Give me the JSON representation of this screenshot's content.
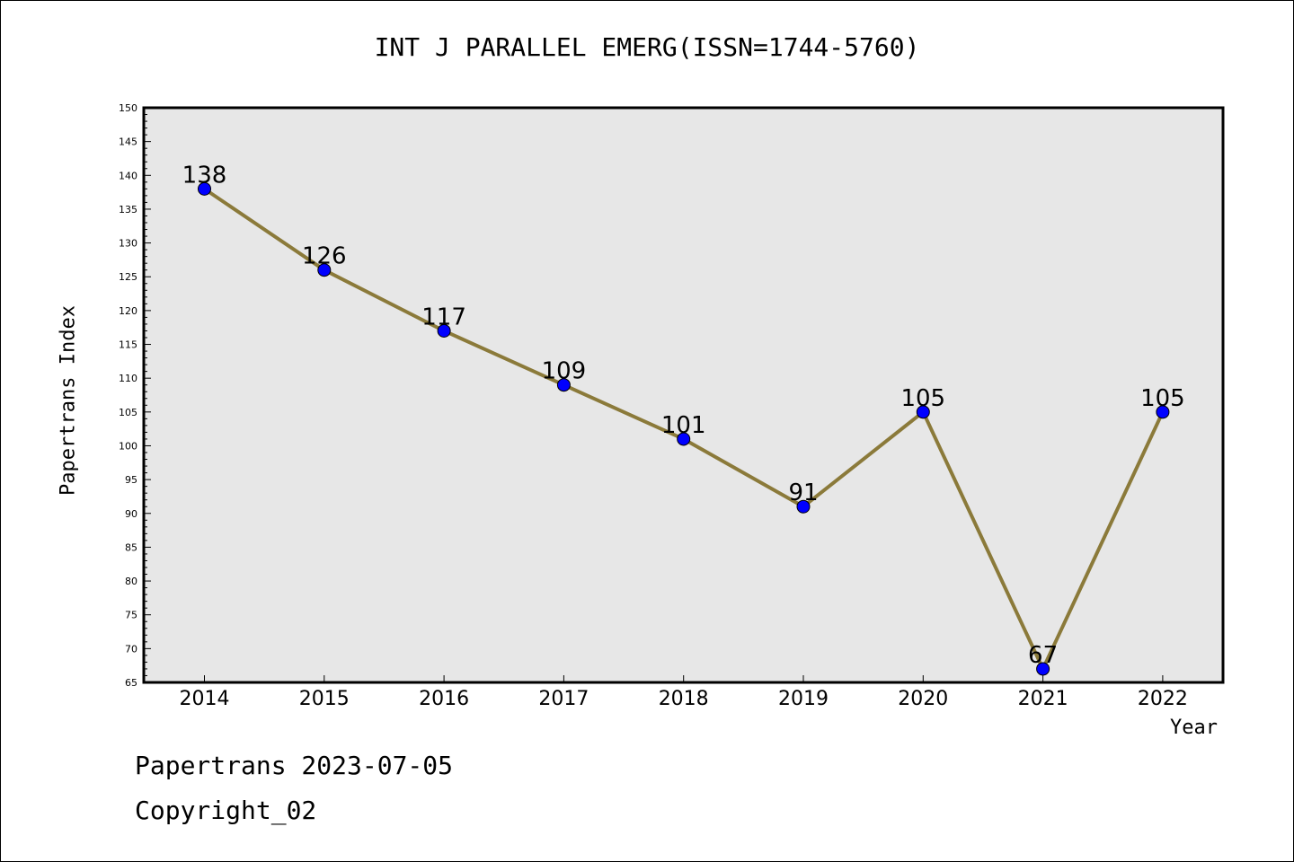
{
  "title": "INT J PARALLEL EMERG(ISSN=1744-5760)",
  "footer": {
    "line1": "Papertrans 2023-07-05",
    "line2": "Copyright_02"
  },
  "chart_data": {
    "type": "line",
    "categories": [
      "2014",
      "2015",
      "2016",
      "2017",
      "2018",
      "2019",
      "2020",
      "2021",
      "2022"
    ],
    "series": [
      {
        "values": [
          138,
          126,
          117,
          109,
          101,
          91,
          105,
          67,
          105
        ]
      }
    ],
    "data_labels": [
      "138",
      "126",
      "117",
      "109",
      "101",
      "91",
      "105",
      "67",
      "105"
    ],
    "xlabel": "Year",
    "ylabel": "Papertrans Index",
    "ylim": [
      65,
      150
    ],
    "yticks": [
      65,
      70,
      75,
      80,
      85,
      90,
      95,
      100,
      105,
      110,
      115,
      120,
      125,
      130,
      135,
      140,
      145,
      150
    ],
    "grid": false,
    "colors": {
      "plot_background": "#e7e7e7",
      "line": "#8b7a3a",
      "marker": "#0000ff",
      "axis": "#000000"
    }
  }
}
